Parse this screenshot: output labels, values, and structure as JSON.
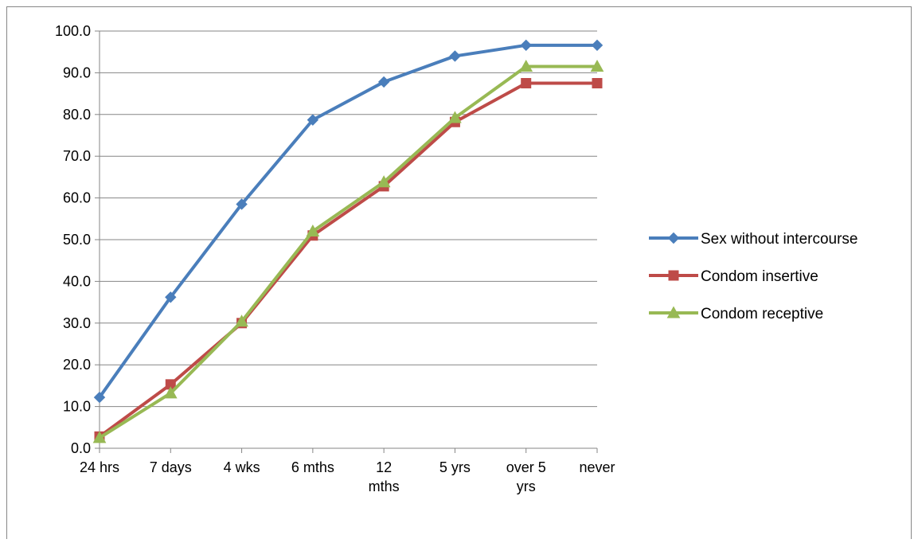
{
  "chart_data": {
    "type": "line",
    "title": "",
    "xlabel": "",
    "ylabel": "",
    "categories": [
      [
        "24 hrs"
      ],
      [
        "7 days"
      ],
      [
        "4 wks"
      ],
      [
        "6 mths"
      ],
      [
        "12",
        "mths"
      ],
      [
        "5 yrs"
      ],
      [
        "over 5",
        "yrs"
      ],
      [
        "never"
      ]
    ],
    "ylim": [
      0,
      100
    ],
    "ytick_step": 10,
    "ytick_labels": [
      "0.0",
      "10.0",
      "20.0",
      "30.0",
      "40.0",
      "50.0",
      "60.0",
      "70.0",
      "80.0",
      "90.0",
      "100.0"
    ],
    "grid": {
      "horizontal": true,
      "vertical": false
    },
    "legend_position": "right",
    "series": [
      {
        "name": "Sex without intercourse",
        "color": "#4a7ebb",
        "marker": "diamond",
        "values": [
          12.2,
          36.2,
          58.5,
          78.7,
          87.8,
          94.0,
          96.6,
          96.6
        ]
      },
      {
        "name": "Condom insertive",
        "color": "#be4b48",
        "marker": "square",
        "values": [
          2.8,
          15.3,
          30.0,
          51.0,
          62.8,
          78.2,
          87.5,
          87.5
        ]
      },
      {
        "name": "Condom receptive",
        "color": "#98b954",
        "marker": "triangle",
        "values": [
          2.5,
          13.2,
          30.4,
          52.0,
          63.8,
          79.2,
          91.5,
          91.5
        ]
      }
    ]
  }
}
